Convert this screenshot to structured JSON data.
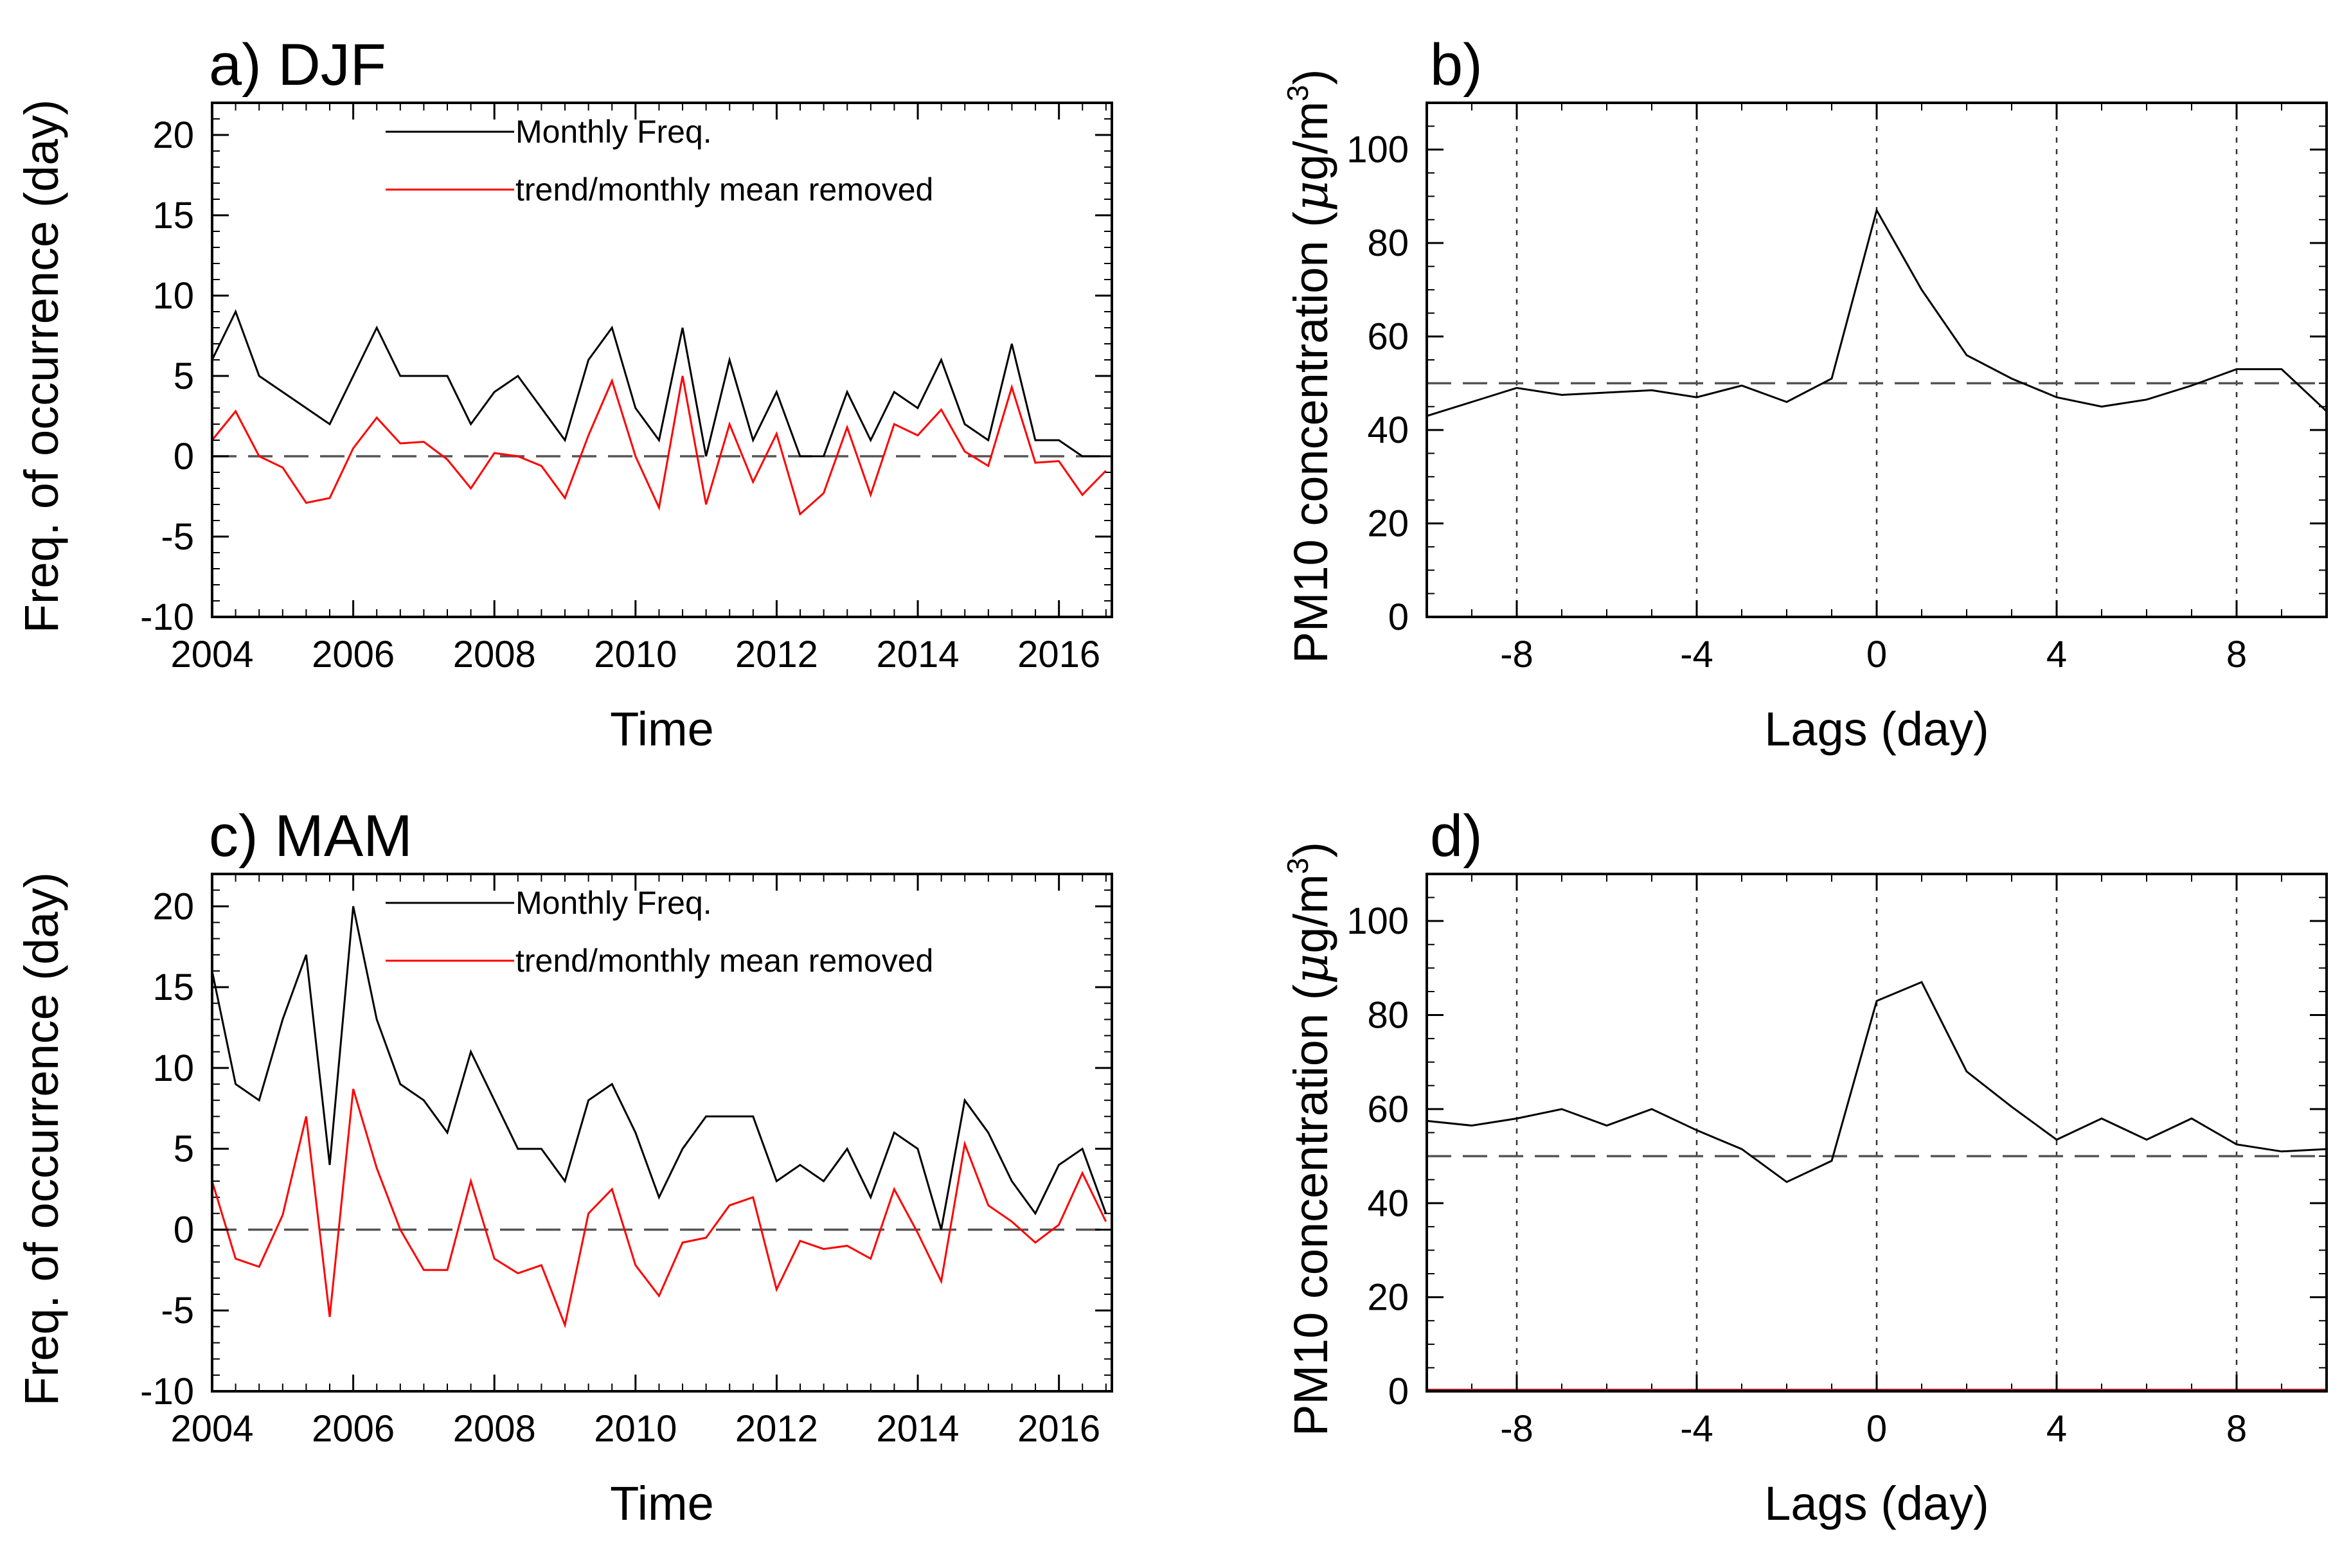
{
  "colors": {
    "black_series": "#000000",
    "red_series": "#ff0000",
    "ref_line": "#555555",
    "grid": "#333333",
    "baseline_d": "#b22222"
  },
  "chart_data": [
    {
      "id": "a",
      "type": "line",
      "title": "a) DJF",
      "xlabel": "Time",
      "ylabel": "Freq. of occurrence (day)",
      "xlim": [
        2004,
        2016.75
      ],
      "ylim": [
        -10,
        22
      ],
      "xticks": [
        2004,
        2006,
        2008,
        2010,
        2012,
        2014,
        2016
      ],
      "xtick_labels": [
        "2004",
        "2006",
        "2008",
        "2010",
        "2012",
        "2014",
        "2016"
      ],
      "yticks": [
        -10,
        -5,
        0,
        5,
        10,
        15,
        20
      ],
      "ytick_labels": [
        "-10",
        "-5",
        "0",
        "5",
        "10",
        "15",
        "20"
      ],
      "reference_line_y": 0,
      "x_start": 2004,
      "x_step": 0.3333,
      "legend": {
        "placement": "top-center",
        "entries": [
          "Monthly Freq.",
          "trend/monthly mean removed"
        ]
      },
      "series": [
        {
          "name": "Monthly Freq.",
          "color": "#000000",
          "values": [
            6,
            9,
            5,
            4,
            3,
            2,
            5,
            8,
            5,
            5,
            5,
            2,
            4,
            5,
            3,
            1,
            6,
            8,
            3,
            1,
            8,
            0,
            6,
            1,
            4,
            0,
            0,
            4,
            1,
            4,
            3,
            6,
            2,
            1,
            7,
            1,
            1,
            0,
            0
          ]
        },
        {
          "name": "trend/monthly mean removed",
          "color": "#ff0000",
          "values": [
            1,
            2.8,
            0,
            -0.7,
            -2.9,
            -2.6,
            0.5,
            2.4,
            0.8,
            0.9,
            -0.2,
            -2,
            0.2,
            0,
            -0.6,
            -2.6,
            1.3,
            4.7,
            0,
            -3.2,
            5,
            -3,
            2,
            -1.6,
            1.4,
            -3.6,
            -2.3,
            1.8,
            -2.4,
            2,
            1.3,
            2.9,
            0.3,
            -0.6,
            4.3,
            -0.4,
            -0.3,
            -2.4,
            -0.9
          ]
        }
      ]
    },
    {
      "id": "b",
      "type": "line",
      "title": "b)",
      "xlabel": "Lags (day)",
      "ylabel_main": "PM10 concentration (",
      "ylabel_mu": "μ",
      "ylabel_unit": "g/m",
      "ylabel_sup": "3",
      "ylabel_close": ")",
      "xlim": [
        -10,
        10
      ],
      "ylim": [
        0,
        110
      ],
      "xticks": [
        -8,
        -4,
        0,
        4,
        8
      ],
      "xtick_labels": [
        "-8",
        "-4",
        "0",
        "4",
        "8"
      ],
      "yticks": [
        0,
        20,
        40,
        60,
        80,
        100
      ],
      "ytick_labels": [
        "0",
        "20",
        "40",
        "60",
        "80",
        "100"
      ],
      "reference_line_y": 50,
      "vertical_gridlines_x": [
        -8,
        -4,
        0,
        4,
        8
      ],
      "x": [
        -10,
        -9,
        -8,
        -7,
        -6,
        -5,
        -4,
        -3,
        -2,
        -1,
        0,
        1,
        2,
        3,
        4,
        5,
        6,
        7,
        8,
        9,
        10
      ],
      "series": [
        {
          "name": "PM10",
          "color": "#000000",
          "values": [
            43,
            46,
            49,
            47.5,
            48,
            48.5,
            47,
            49.5,
            46,
            51,
            87,
            70,
            56,
            51,
            47,
            45,
            46.5,
            49.5,
            53,
            53,
            44
          ]
        }
      ]
    },
    {
      "id": "c",
      "type": "line",
      "title": "c) MAM",
      "xlabel": "Time",
      "ylabel": "Freq. of occurrence (day)",
      "xlim": [
        2004,
        2016.75
      ],
      "ylim": [
        -10,
        22
      ],
      "xticks": [
        2004,
        2006,
        2008,
        2010,
        2012,
        2014,
        2016
      ],
      "xtick_labels": [
        "2004",
        "2006",
        "2008",
        "2010",
        "2012",
        "2014",
        "2016"
      ],
      "yticks": [
        -10,
        -5,
        0,
        5,
        10,
        15,
        20
      ],
      "ytick_labels": [
        "-10",
        "-5",
        "0",
        "5",
        "10",
        "15",
        "20"
      ],
      "reference_line_y": 0,
      "x_start": 2004,
      "x_step": 0.3333,
      "legend": {
        "placement": "top-center",
        "entries": [
          "Monthly Freq.",
          "trend/monthly mean removed"
        ]
      },
      "series": [
        {
          "name": "Monthly Freq.",
          "color": "#000000",
          "values": [
            16,
            9,
            8,
            13,
            17,
            4,
            20,
            13,
            9,
            8,
            6,
            11,
            8,
            5,
            5,
            3,
            8,
            9,
            6,
            2,
            5,
            7,
            7,
            7,
            3,
            4,
            3,
            5,
            2,
            6,
            5,
            0,
            8,
            6,
            3,
            1,
            4,
            5,
            1
          ]
        },
        {
          "name": "trend/monthly mean removed",
          "color": "#ff0000",
          "values": [
            3,
            -1.8,
            -2.3,
            0.9,
            7,
            -5.4,
            8.7,
            3.8,
            0,
            -2.5,
            -2.5,
            3,
            -1.8,
            -2.7,
            -2.2,
            -5.9,
            1,
            2.5,
            -2.2,
            -4.1,
            -0.8,
            -0.5,
            1.5,
            2,
            -3.7,
            -0.7,
            -1.2,
            -1,
            -1.8,
            2.5,
            -0.2,
            -3.2,
            5.3,
            1.5,
            0.5,
            -0.8,
            0.3,
            3.5,
            0.5
          ]
        }
      ]
    },
    {
      "id": "d",
      "type": "line",
      "title": "d)",
      "xlabel": "Lags (day)",
      "ylabel_main": "PM10 concentration (",
      "ylabel_mu": "μ",
      "ylabel_unit": "g/m",
      "ylabel_sup": "3",
      "ylabel_close": ")",
      "xlim": [
        -10,
        10
      ],
      "ylim": [
        0,
        110
      ],
      "xticks": [
        -8,
        -4,
        0,
        4,
        8
      ],
      "xtick_labels": [
        "-8",
        "-4",
        "0",
        "4",
        "8"
      ],
      "yticks": [
        0,
        20,
        40,
        60,
        80,
        100
      ],
      "ytick_labels": [
        "0",
        "20",
        "40",
        "60",
        "80",
        "100"
      ],
      "reference_line_y": 50,
      "vertical_gridlines_x": [
        -8,
        -4,
        0,
        4,
        8
      ],
      "x": [
        -10,
        -9,
        -8,
        -7,
        -6,
        -5,
        -4,
        -3,
        -2,
        -1,
        0,
        1,
        2,
        3,
        4,
        5,
        6,
        7,
        8,
        9,
        10
      ],
      "series": [
        {
          "name": "PM10",
          "color": "#000000",
          "values": [
            57.5,
            56.5,
            58,
            60,
            56.5,
            60,
            55.5,
            51.5,
            44.5,
            49,
            83,
            87,
            68,
            60.5,
            53.5,
            58,
            53.5,
            58,
            52.5,
            51,
            51.5
          ]
        }
      ]
    }
  ]
}
